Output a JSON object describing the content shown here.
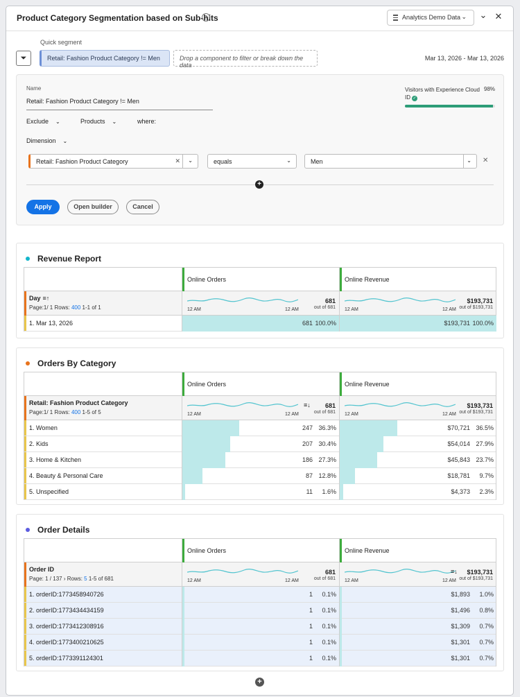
{
  "header": {
    "title": "Product Category Segmentation based on Sub-hits",
    "help_glyph": "?",
    "data_source": "Analytics Demo Data",
    "collapse_glyph": "⌄",
    "close_glyph": "✕"
  },
  "quick_segment": {
    "label": "Quick segment",
    "chip": "Retail: Fashion Product Category != Men",
    "drop_hint": "Drop a component to filter or break down the data",
    "date_range": "Mar 13, 2026 - Mar 13, 2026"
  },
  "builder": {
    "name_label": "Name",
    "name_value": "Retail: Fashion Product Category != Men",
    "visitors_label": "Visitors with Experience Cloud ID",
    "visitors_pct": "98%",
    "visitors_fraction": 0.98,
    "exclude": "Exclude",
    "products": "Products",
    "where": "where:",
    "dimension": "Dimension",
    "condition_dimension": "Retail: Fashion Product Category",
    "operator": "equals",
    "value": "Men",
    "apply": "Apply",
    "open_builder": "Open builder",
    "cancel": "Cancel"
  },
  "reports": [
    {
      "title": "Revenue Report",
      "dot_color": "#12b5cb",
      "dimension": "Day",
      "page_text": "Page:1/ 1   Rows:",
      "rows_link": "400",
      "range_text": "1-1 of 1",
      "metrics": [
        {
          "name": "Online Orders",
          "tick_start": "12 AM",
          "tick_end": "12 AM",
          "total": "681",
          "total_sub": "out of 681"
        },
        {
          "name": "Online Revenue",
          "tick_start": "12 AM",
          "tick_end": "12 AM",
          "total": "$193,731",
          "total_sub": "out of $193,731"
        }
      ],
      "rows": [
        {
          "label": "1.  Mar 13, 2026",
          "v1": "681",
          "p1": "100.0%",
          "f1": 1.0,
          "v2": "$193,731",
          "p2": "100.0%",
          "f2": 1.0
        }
      ]
    },
    {
      "title": "Orders By Category",
      "dot_color": "#e8731d",
      "dimension": "Retail: Fashion Product Category",
      "page_text": "Page:1/ 1   Rows:",
      "rows_link": "400",
      "range_text": "1-5 of 5",
      "sort_glyph": "≡↓",
      "metrics": [
        {
          "name": "Online Orders",
          "tick_start": "12 AM",
          "tick_end": "12 AM",
          "total": "681",
          "total_sub": "out of 681"
        },
        {
          "name": "Online Revenue",
          "tick_start": "12 AM",
          "tick_end": "12 AM",
          "total": "$193,731",
          "total_sub": "out of $193,731"
        }
      ],
      "rows": [
        {
          "label": "1.  Women",
          "v1": "247",
          "p1": "36.3%",
          "f1": 0.363,
          "v2": "$70,721",
          "p2": "36.5%",
          "f2": 0.365
        },
        {
          "label": "2.  Kids",
          "v1": "207",
          "p1": "30.4%",
          "f1": 0.304,
          "v2": "$54,014",
          "p2": "27.9%",
          "f2": 0.279
        },
        {
          "label": "3.  Home & Kitchen",
          "v1": "186",
          "p1": "27.3%",
          "f1": 0.273,
          "v2": "$45,843",
          "p2": "23.7%",
          "f2": 0.237
        },
        {
          "label": "4.  Beauty & Personal Care",
          "v1": "87",
          "p1": "12.8%",
          "f1": 0.128,
          "v2": "$18,781",
          "p2": "9.7%",
          "f2": 0.097
        },
        {
          "label": "5.  Unspecified",
          "v1": "11",
          "p1": "1.6%",
          "f1": 0.016,
          "v2": "$4,373",
          "p2": "2.3%",
          "f2": 0.023
        }
      ]
    },
    {
      "title": "Order Details",
      "dot_color": "#5c5ce0",
      "dimension": "Order ID",
      "page_text": "Page:  1  / 137  ›  Rows:",
      "rows_link": "5",
      "range_text": "1-5 of 681",
      "sort_glyph": "≡↓",
      "metrics": [
        {
          "name": "Online Orders",
          "tick_start": "12 AM",
          "tick_end": "12 AM",
          "total": "681",
          "total_sub": "out of 681"
        },
        {
          "name": "Online Revenue",
          "tick_start": "12 AM",
          "tick_end": "12 AM",
          "total": "$193,731",
          "total_sub": "out of $193,731"
        }
      ],
      "rows": [
        {
          "label": "1.  orderID:1773458940726",
          "v1": "1",
          "p1": "0.1%",
          "f1": 0.001,
          "v2": "$1,893",
          "p2": "1.0%",
          "f2": 0.01
        },
        {
          "label": "2.  orderID:1773434434159",
          "v1": "1",
          "p1": "0.1%",
          "f1": 0.001,
          "v2": "$1,496",
          "p2": "0.8%",
          "f2": 0.008
        },
        {
          "label": "3.  orderID:1773412308916",
          "v1": "1",
          "p1": "0.1%",
          "f1": 0.001,
          "v2": "$1,309",
          "p2": "0.7%",
          "f2": 0.007
        },
        {
          "label": "4.  orderID:1773400210625",
          "v1": "1",
          "p1": "0.1%",
          "f1": 0.001,
          "v2": "$1,301",
          "p2": "0.7%",
          "f2": 0.007
        },
        {
          "label": "5.  orderID:1773391124301",
          "v1": "1",
          "p1": "0.1%",
          "f1": 0.001,
          "v2": "$1,301",
          "p2": "0.7%",
          "f2": 0.007
        }
      ]
    }
  ],
  "add_glyph": "+"
}
